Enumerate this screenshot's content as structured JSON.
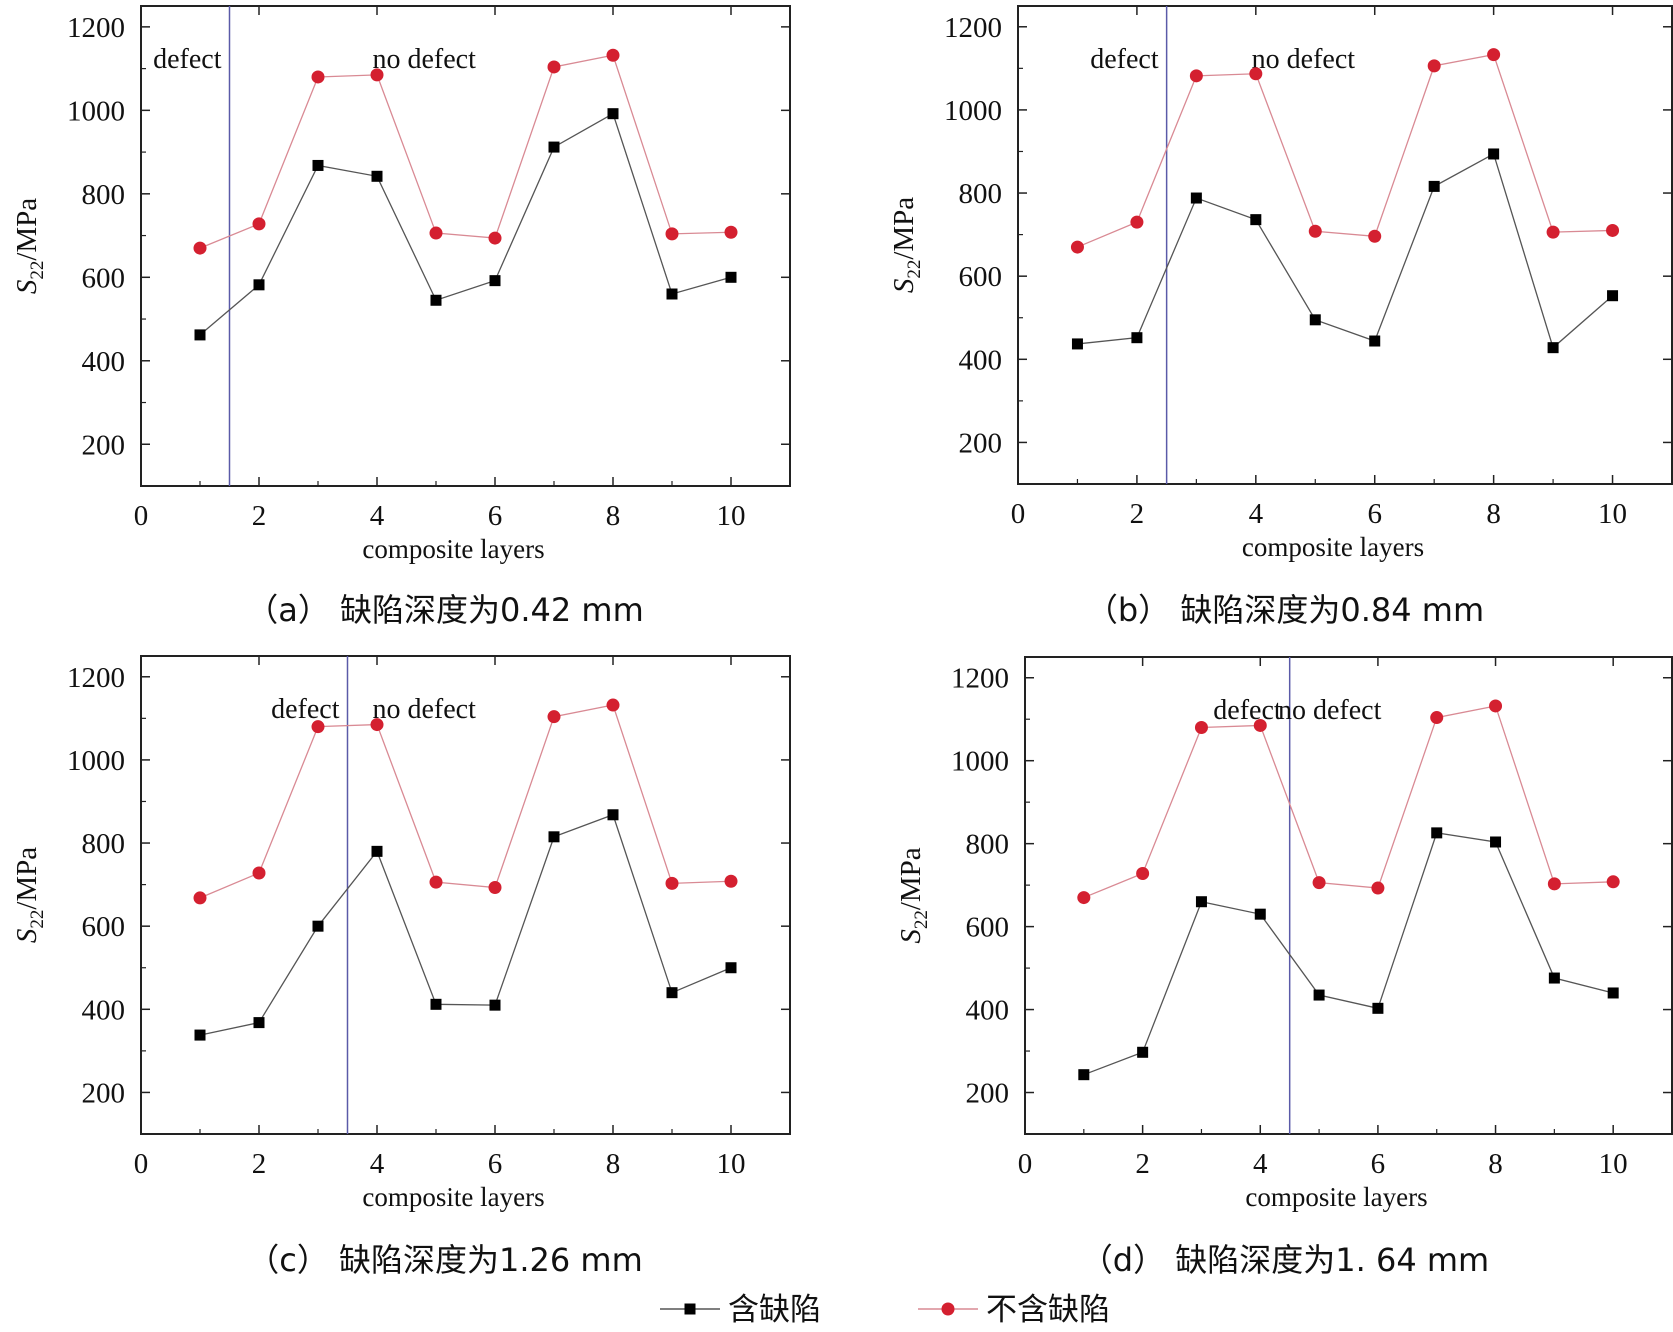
{
  "chart_data": [
    {
      "type": "line",
      "caption": "（a） 缺陷深度为0.42 mm",
      "xlabel": "composite layers",
      "ylabel_main": "S",
      "ylabel_sub": "22",
      "ylabel_unit": "/MPa",
      "xlim": [
        0,
        11
      ],
      "ylim": [
        100,
        1250
      ],
      "x_ticks": [
        0,
        2,
        4,
        6,
        8,
        10
      ],
      "y_ticks": [
        200,
        400,
        600,
        800,
        1000,
        1200
      ],
      "divider_x": 1.5,
      "annotations": {
        "defect": "defect",
        "no_defect": "no defect"
      },
      "x": [
        1,
        2,
        3,
        4,
        5,
        6,
        7,
        8,
        9,
        10
      ],
      "series": [
        {
          "name": "含缺陷",
          "marker": "square",
          "color": "#000000",
          "values": [
            462,
            582,
            868,
            842,
            545,
            592,
            912,
            992,
            560,
            600
          ]
        },
        {
          "name": "不含缺陷",
          "marker": "circle",
          "color": "#d42030",
          "values": [
            670,
            728,
            1080,
            1085,
            706,
            694,
            1104,
            1132,
            704,
            708
          ]
        }
      ]
    },
    {
      "type": "line",
      "caption": "（b） 缺陷深度为0.84 mm",
      "xlabel": "composite layers",
      "ylabel_main": "S",
      "ylabel_sub": "22",
      "ylabel_unit": "/MPa",
      "xlim": [
        0,
        11
      ],
      "ylim": [
        100,
        1250
      ],
      "x_ticks": [
        0,
        2,
        4,
        6,
        8,
        10
      ],
      "y_ticks": [
        200,
        400,
        600,
        800,
        1000,
        1200
      ],
      "divider_x": 2.5,
      "annotations": {
        "defect": "defect",
        "no_defect": "no defect"
      },
      "x": [
        1,
        2,
        3,
        4,
        5,
        6,
        7,
        8,
        9,
        10
      ],
      "series": [
        {
          "name": "含缺陷",
          "marker": "square",
          "color": "#000000",
          "values": [
            437,
            452,
            788,
            736,
            495,
            444,
            816,
            894,
            428,
            553
          ]
        },
        {
          "name": "不含缺陷",
          "marker": "circle",
          "color": "#d42030",
          "values": [
            670,
            730,
            1082,
            1087,
            708,
            696,
            1106,
            1133,
            706,
            710
          ]
        }
      ]
    },
    {
      "type": "line",
      "caption": "（c） 缺陷深度为1.26 mm",
      "xlabel": "composite layers",
      "ylabel_main": "S",
      "ylabel_sub": "22",
      "ylabel_unit": "/MPa",
      "xlim": [
        0,
        11
      ],
      "ylim": [
        100,
        1250
      ],
      "x_ticks": [
        0,
        2,
        4,
        6,
        8,
        10
      ],
      "y_ticks": [
        200,
        400,
        600,
        800,
        1000,
        1200
      ],
      "divider_x": 3.5,
      "annotations": {
        "defect": "defect",
        "no_defect": "no defect"
      },
      "x": [
        1,
        2,
        3,
        4,
        5,
        6,
        7,
        8,
        9,
        10
      ],
      "series": [
        {
          "name": "含缺陷",
          "marker": "square",
          "color": "#000000",
          "values": [
            338,
            368,
            600,
            780,
            412,
            410,
            815,
            868,
            440,
            500
          ]
        },
        {
          "name": "不含缺陷",
          "marker": "circle",
          "color": "#d42030",
          "values": [
            668,
            728,
            1080,
            1085,
            706,
            693,
            1104,
            1132,
            703,
            708
          ]
        }
      ]
    },
    {
      "type": "line",
      "caption": "（d） 缺陷深度为1. 64 mm",
      "xlabel": "composite layers",
      "ylabel_main": "S",
      "ylabel_sub": "22",
      "ylabel_unit": "/MPa",
      "xlim": [
        0,
        11
      ],
      "ylim": [
        100,
        1250
      ],
      "x_ticks": [
        0,
        2,
        4,
        6,
        8,
        10
      ],
      "y_ticks": [
        200,
        400,
        600,
        800,
        1000,
        1200
      ],
      "divider_x": 4.5,
      "annotations": {
        "defect": "defect",
        "no_defect": "no defect"
      },
      "x": [
        1,
        2,
        3,
        4,
        5,
        6,
        7,
        8,
        9,
        10
      ],
      "series": [
        {
          "name": "含缺陷",
          "marker": "square",
          "color": "#000000",
          "values": [
            243,
            297,
            660,
            630,
            435,
            403,
            826,
            804,
            476,
            440
          ]
        },
        {
          "name": "不含缺陷",
          "marker": "circle",
          "color": "#d42030",
          "values": [
            670,
            728,
            1080,
            1085,
            706,
            693,
            1104,
            1132,
            703,
            708
          ]
        }
      ]
    }
  ],
  "legend": [
    {
      "label": "含缺陷",
      "marker": "square",
      "color": "#000000"
    },
    {
      "label": "不含缺陷",
      "marker": "circle",
      "color": "#d42030"
    }
  ],
  "colors": {
    "frame": "#222222",
    "divider": "#5a5aa8",
    "defect_line": "#555555",
    "nodefect_line": "#d98a94"
  }
}
